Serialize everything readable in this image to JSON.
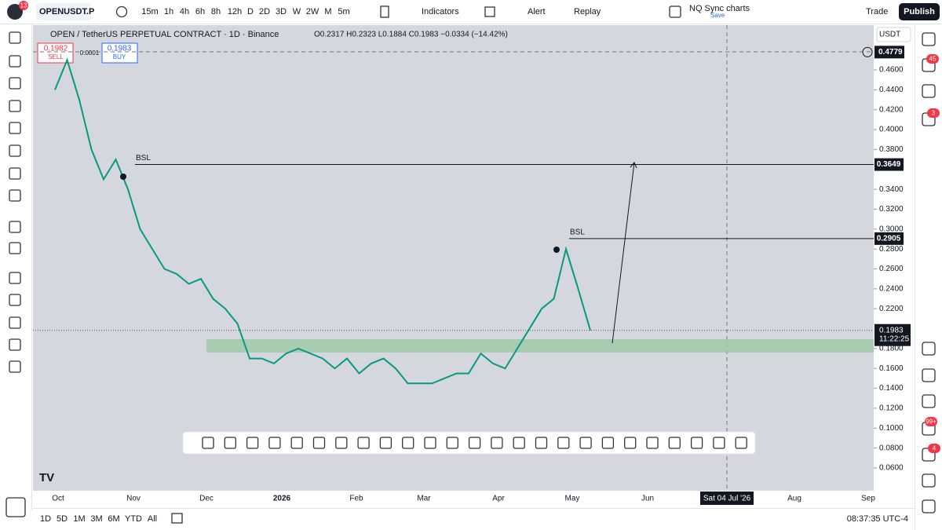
{
  "toolbar": {
    "symbol": "OPENUSDT.P",
    "badge": "13",
    "intervals": [
      "15m",
      "1h",
      "4h",
      "6h",
      "8h",
      "12h",
      "D",
      "2D",
      "3D",
      "W",
      "2W",
      "M",
      "5m"
    ],
    "indicators": "Indicators",
    "alert": "Alert",
    "replay": "Replay",
    "layout": "NQ Sync charts",
    "save": "Save",
    "trade": "Trade",
    "publish": "Publish"
  },
  "legend": {
    "title": "OPEN / TetherUS PERPETUAL CONTRACT · 1D · Binance",
    "ohlc": "O0.2317 H0.2323 L0.1884 C0.1983 −0.0334 (−14.42%)"
  },
  "order": {
    "sell_price": "0.1982",
    "sell": "SELL",
    "spread": "0.0001",
    "buy_price": "0.1983",
    "buy": "BUY"
  },
  "chart_data": {
    "type": "line",
    "currency": "USDT",
    "color": "#089981",
    "values": [
      0.44,
      0.47,
      0.43,
      0.38,
      0.35,
      0.37,
      0.34,
      0.3,
      0.28,
      0.26,
      0.255,
      0.245,
      0.25,
      0.23,
      0.22,
      0.205,
      0.17,
      0.17,
      0.165,
      0.175,
      0.18,
      0.175,
      0.17,
      0.16,
      0.17,
      0.155,
      0.165,
      0.17,
      0.16,
      0.145,
      0.145,
      0.145,
      0.15,
      0.155,
      0.155,
      0.175,
      0.165,
      0.16,
      0.18,
      0.2,
      0.22,
      0.23,
      0.28,
      0.24,
      0.1983
    ],
    "ylim": [
      0.0371,
      0.505
    ],
    "yticks": [
      {
        "value": 0.46,
        "label": "0.4600"
      },
      {
        "value": 0.44,
        "label": "0.4400"
      },
      {
        "value": 0.42,
        "label": "0.4200"
      },
      {
        "value": 0.4,
        "label": "0.4000"
      },
      {
        "value": 0.38,
        "label": "0.3800"
      },
      {
        "value": 0.34,
        "label": "0.3400"
      },
      {
        "value": 0.32,
        "label": "0.3200"
      },
      {
        "value": 0.3,
        "label": "0.3000"
      },
      {
        "value": 0.28,
        "label": "0.2800"
      },
      {
        "value": 0.26,
        "label": "0.2600"
      },
      {
        "value": 0.24,
        "label": "0.2400"
      },
      {
        "value": 0.22,
        "label": "0.2200"
      },
      {
        "value": 0.18,
        "label": "0.1800"
      },
      {
        "value": 0.16,
        "label": "0.1600"
      },
      {
        "value": 0.14,
        "label": "0.1400"
      },
      {
        "value": 0.12,
        "label": "0.1200"
      },
      {
        "value": 0.1,
        "label": "0.1000"
      },
      {
        "value": 0.08,
        "label": "0.0800"
      },
      {
        "value": 0.06,
        "label": "0.0600"
      }
    ],
    "x_labels": [
      "Oct",
      "Nov",
      "Dec",
      "2026",
      "Feb",
      "Mar",
      "Apr",
      "May",
      "Jun",
      "Aug",
      "Sep"
    ],
    "crosshair_date": "Sat 04 Jul '26",
    "levels": [
      {
        "name": "BSL",
        "value": 0.3649,
        "label": "0.3649"
      },
      {
        "name": "BSL",
        "value": 0.2905,
        "label": "0.2905"
      }
    ],
    "zone": [
      0.176,
      0.1894
    ],
    "last_price": {
      "value": 0.1983,
      "label": "0.1983",
      "countdown": "11:22:25"
    },
    "high_price": {
      "value": 0.4779,
      "label": "0.4779"
    }
  },
  "side_badges": [
    "45",
    "3",
    "99+",
    "4"
  ],
  "ranges": [
    "1D",
    "5D",
    "1M",
    "3M",
    "6M",
    "YTD",
    "All"
  ],
  "clock": "08:37:35 UTC-4"
}
